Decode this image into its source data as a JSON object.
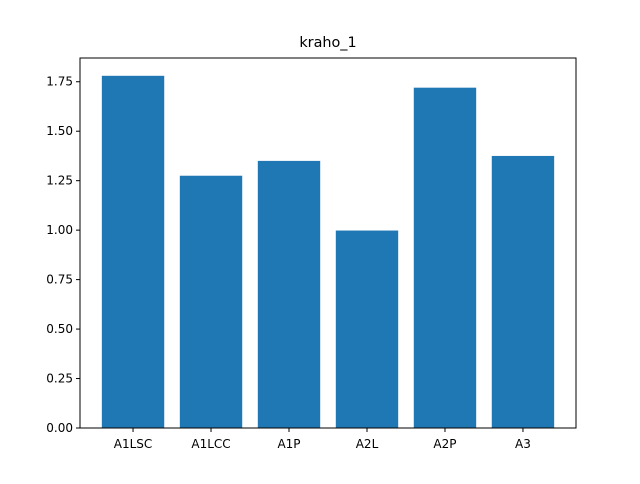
{
  "chart_data": {
    "type": "bar",
    "title": "kraho_1",
    "xlabel": "",
    "ylabel": "",
    "categories": [
      "A1LSC",
      "A1LCC",
      "A1P",
      "A2L",
      "A2P",
      "A3"
    ],
    "values": [
      1.78,
      1.275,
      1.35,
      0.998,
      1.72,
      1.375
    ],
    "ylim": [
      0,
      1.87
    ],
    "yticks": [
      "0.00",
      "0.25",
      "0.50",
      "0.75",
      "1.00",
      "1.25",
      "1.50",
      "1.75"
    ],
    "ytick_values": [
      0,
      0.25,
      0.5,
      0.75,
      1.0,
      1.25,
      1.5,
      1.75
    ],
    "bar_color": "#1f77b4",
    "grid": false,
    "legend": "none"
  }
}
